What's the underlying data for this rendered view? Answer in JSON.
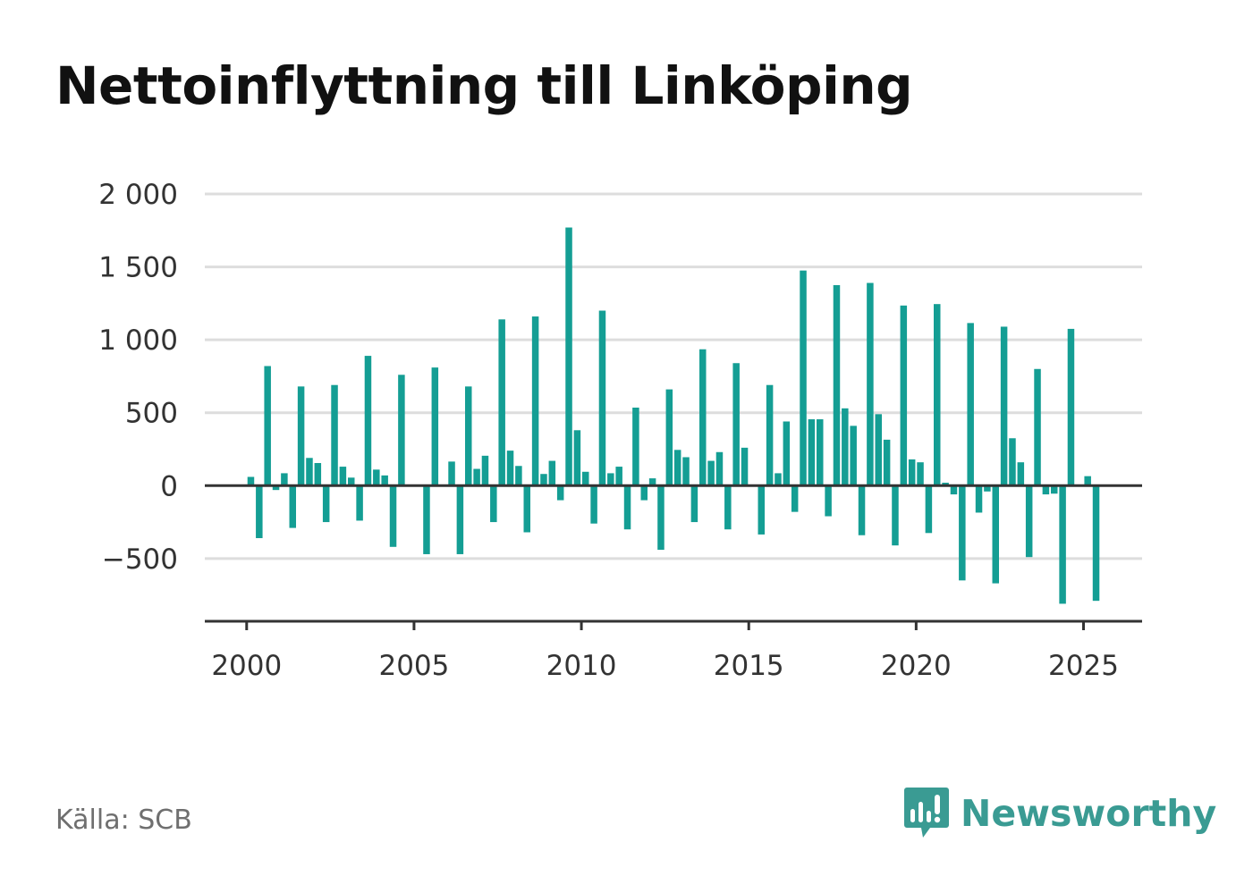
{
  "source": "Källa: SCB",
  "brand": {
    "name": "Newsworthy",
    "color": "#3a9b93",
    "icon": "newsworthy-logo-icon"
  },
  "colors": {
    "bar": "#149e94",
    "grid": "#dddddd",
    "axis": "#333333"
  },
  "chart_data": {
    "type": "bar",
    "title": "Nettoinflyttning till Linköping",
    "xlabel": "",
    "ylabel": "",
    "ylim": [
      -930,
      2000
    ],
    "yticks": [
      -500,
      0,
      500,
      1000,
      1500,
      2000
    ],
    "ytick_labels": [
      "−500",
      "0",
      "500",
      "1 000",
      "1 500",
      "2 000"
    ],
    "xticks": [
      2000,
      2005,
      2010,
      2015,
      2020,
      2025
    ],
    "xtick_labels": [
      "2000",
      "2005",
      "2010",
      "2015",
      "2020",
      "2025"
    ],
    "x_domain": [
      1998.75,
      2026.75
    ],
    "grid": true,
    "legend": "none",
    "x": [
      2000.125,
      2000.375,
      2000.625,
      2000.875,
      2001.125,
      2001.375,
      2001.625,
      2001.875,
      2002.125,
      2002.375,
      2002.625,
      2002.875,
      2003.125,
      2003.375,
      2003.625,
      2003.875,
      2004.125,
      2004.375,
      2004.625,
      2004.875,
      2005.125,
      2005.375,
      2005.625,
      2005.875,
      2006.125,
      2006.375,
      2006.625,
      2006.875,
      2007.125,
      2007.375,
      2007.625,
      2007.875,
      2008.125,
      2008.375,
      2008.625,
      2008.875,
      2009.125,
      2009.375,
      2009.625,
      2009.875,
      2010.125,
      2010.375,
      2010.625,
      2010.875,
      2011.125,
      2011.375,
      2011.625,
      2011.875,
      2012.125,
      2012.375,
      2012.625,
      2012.875,
      2013.125,
      2013.375,
      2013.625,
      2013.875,
      2014.125,
      2014.375,
      2014.625,
      2014.875,
      2015.125,
      2015.375,
      2015.625,
      2015.875,
      2016.125,
      2016.375,
      2016.625,
      2016.875,
      2017.125,
      2017.375,
      2017.625,
      2017.875,
      2018.125,
      2018.375,
      2018.625,
      2018.875,
      2019.125,
      2019.375,
      2019.625,
      2019.875,
      2020.125,
      2020.375,
      2020.625,
      2020.875,
      2021.125,
      2021.375,
      2021.625,
      2021.875,
      2022.125,
      2022.375,
      2022.625,
      2022.875,
      2023.125,
      2023.375,
      2023.625,
      2023.875,
      2024.125,
      2024.375,
      2024.625,
      2024.875,
      2025.125,
      2025.375
    ],
    "values": [
      60,
      -360,
      820,
      -30,
      85,
      -290,
      680,
      190,
      155,
      -250,
      690,
      130,
      55,
      -240,
      890,
      110,
      70,
      -420,
      760,
      0,
      0,
      -470,
      810,
      0,
      165,
      -470,
      680,
      115,
      205,
      -250,
      1140,
      240,
      135,
      -320,
      1160,
      80,
      170,
      -100,
      1770,
      380,
      95,
      -260,
      1200,
      85,
      130,
      -300,
      535,
      -100,
      50,
      -440,
      660,
      245,
      195,
      -250,
      935,
      170,
      230,
      -300,
      840,
      260,
      0,
      -335,
      690,
      85,
      440,
      -180,
      1475,
      455,
      455,
      -210,
      1375,
      530,
      410,
      -340,
      1390,
      490,
      315,
      -410,
      1235,
      180,
      160,
      -325,
      1245,
      20,
      -60,
      -650,
      1115,
      -185,
      -40,
      -670,
      1090,
      325,
      160,
      -490,
      800,
      -60,
      -55,
      -810,
      1075,
      0,
      65,
      -790
    ]
  }
}
